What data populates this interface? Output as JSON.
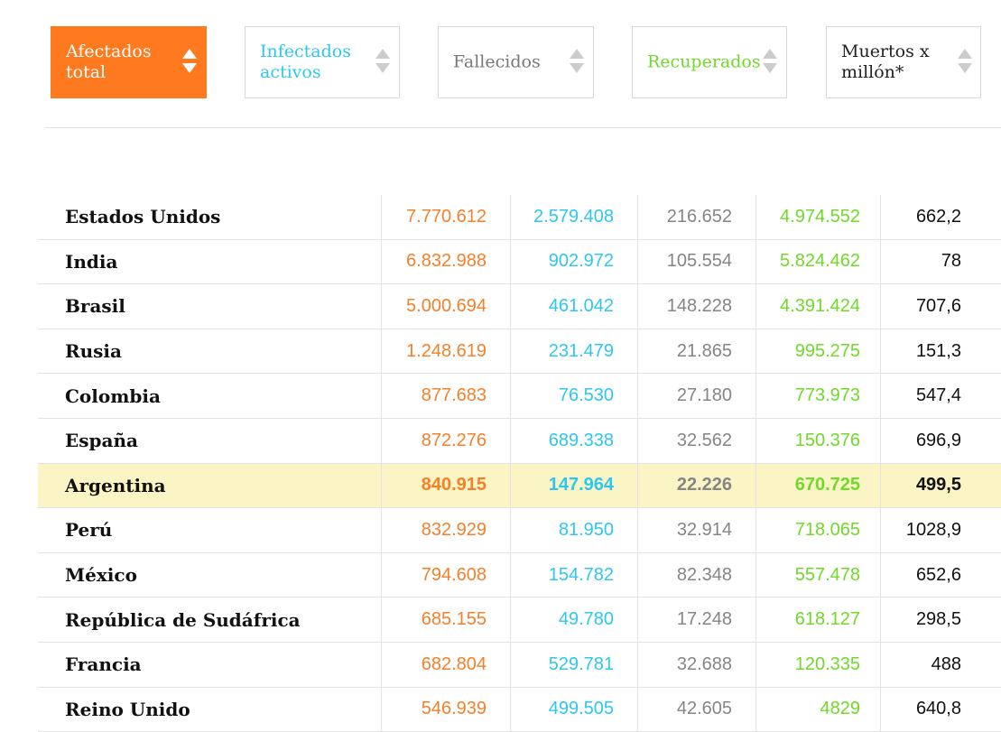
{
  "colors": {
    "total": "#f5802a",
    "active": "#2ec7f0",
    "dead": "#858585",
    "recovered": "#70d92a",
    "mpm": "#111111",
    "active_button_bg": "#ff7a1f",
    "highlight_row": "#fbf4c4"
  },
  "sort_buttons": [
    {
      "label": "Afectados\ntotal",
      "icon": "sort-arrows-icon",
      "active": true
    },
    {
      "label": "Infectados\nactivos",
      "icon": "sort-arrows-icon",
      "active": false
    },
    {
      "label": "Fallecidos",
      "icon": "sort-arrows-icon",
      "active": false
    },
    {
      "label": "Recuperados",
      "icon": "sort-arrows-icon",
      "active": false
    },
    {
      "label": "Muertos x\nmillón*",
      "icon": "sort-arrows-icon",
      "active": false
    }
  ],
  "rows": [
    {
      "country": "Estados Unidos",
      "total": "7.770.612",
      "active": "2.579.408",
      "dead": "216.652",
      "recovered": "4.974.552",
      "mpm": "662,2"
    },
    {
      "country": "India",
      "total": "6.832.988",
      "active": "902.972",
      "dead": "105.554",
      "recovered": "5.824.462",
      "mpm": "78"
    },
    {
      "country": "Brasil",
      "total": "5.000.694",
      "active": "461.042",
      "dead": "148.228",
      "recovered": "4.391.424",
      "mpm": "707,6"
    },
    {
      "country": "Rusia",
      "total": "1.248.619",
      "active": "231.479",
      "dead": "21.865",
      "recovered": "995.275",
      "mpm": "151,3"
    },
    {
      "country": "Colombia",
      "total": "877.683",
      "active": "76.530",
      "dead": "27.180",
      "recovered": "773.973",
      "mpm": "547,4"
    },
    {
      "country": "España",
      "total": "872.276",
      "active": "689.338",
      "dead": "32.562",
      "recovered": "150.376",
      "mpm": "696,9"
    },
    {
      "country": "Argentina",
      "total": "840.915",
      "active": "147.964",
      "dead": "22.226",
      "recovered": "670.725",
      "mpm": "499,5",
      "highlight": true
    },
    {
      "country": "Perú",
      "total": "832.929",
      "active": "81.950",
      "dead": "32.914",
      "recovered": "718.065",
      "mpm": "1028,9"
    },
    {
      "country": "México",
      "total": "794.608",
      "active": "154.782",
      "dead": "82.348",
      "recovered": "557.478",
      "mpm": "652,6"
    },
    {
      "country": "República de Sudáfrica",
      "total": "685.155",
      "active": "49.780",
      "dead": "17.248",
      "recovered": "618.127",
      "mpm": "298,5"
    },
    {
      "country": "Francia",
      "total": "682.804",
      "active": "529.781",
      "dead": "32.688",
      "recovered": "120.335",
      "mpm": "488"
    },
    {
      "country": "Reino Unido",
      "total": "546.939",
      "active": "499.505",
      "dead": "42.605",
      "recovered": "4829",
      "mpm": "640,8"
    }
  ]
}
